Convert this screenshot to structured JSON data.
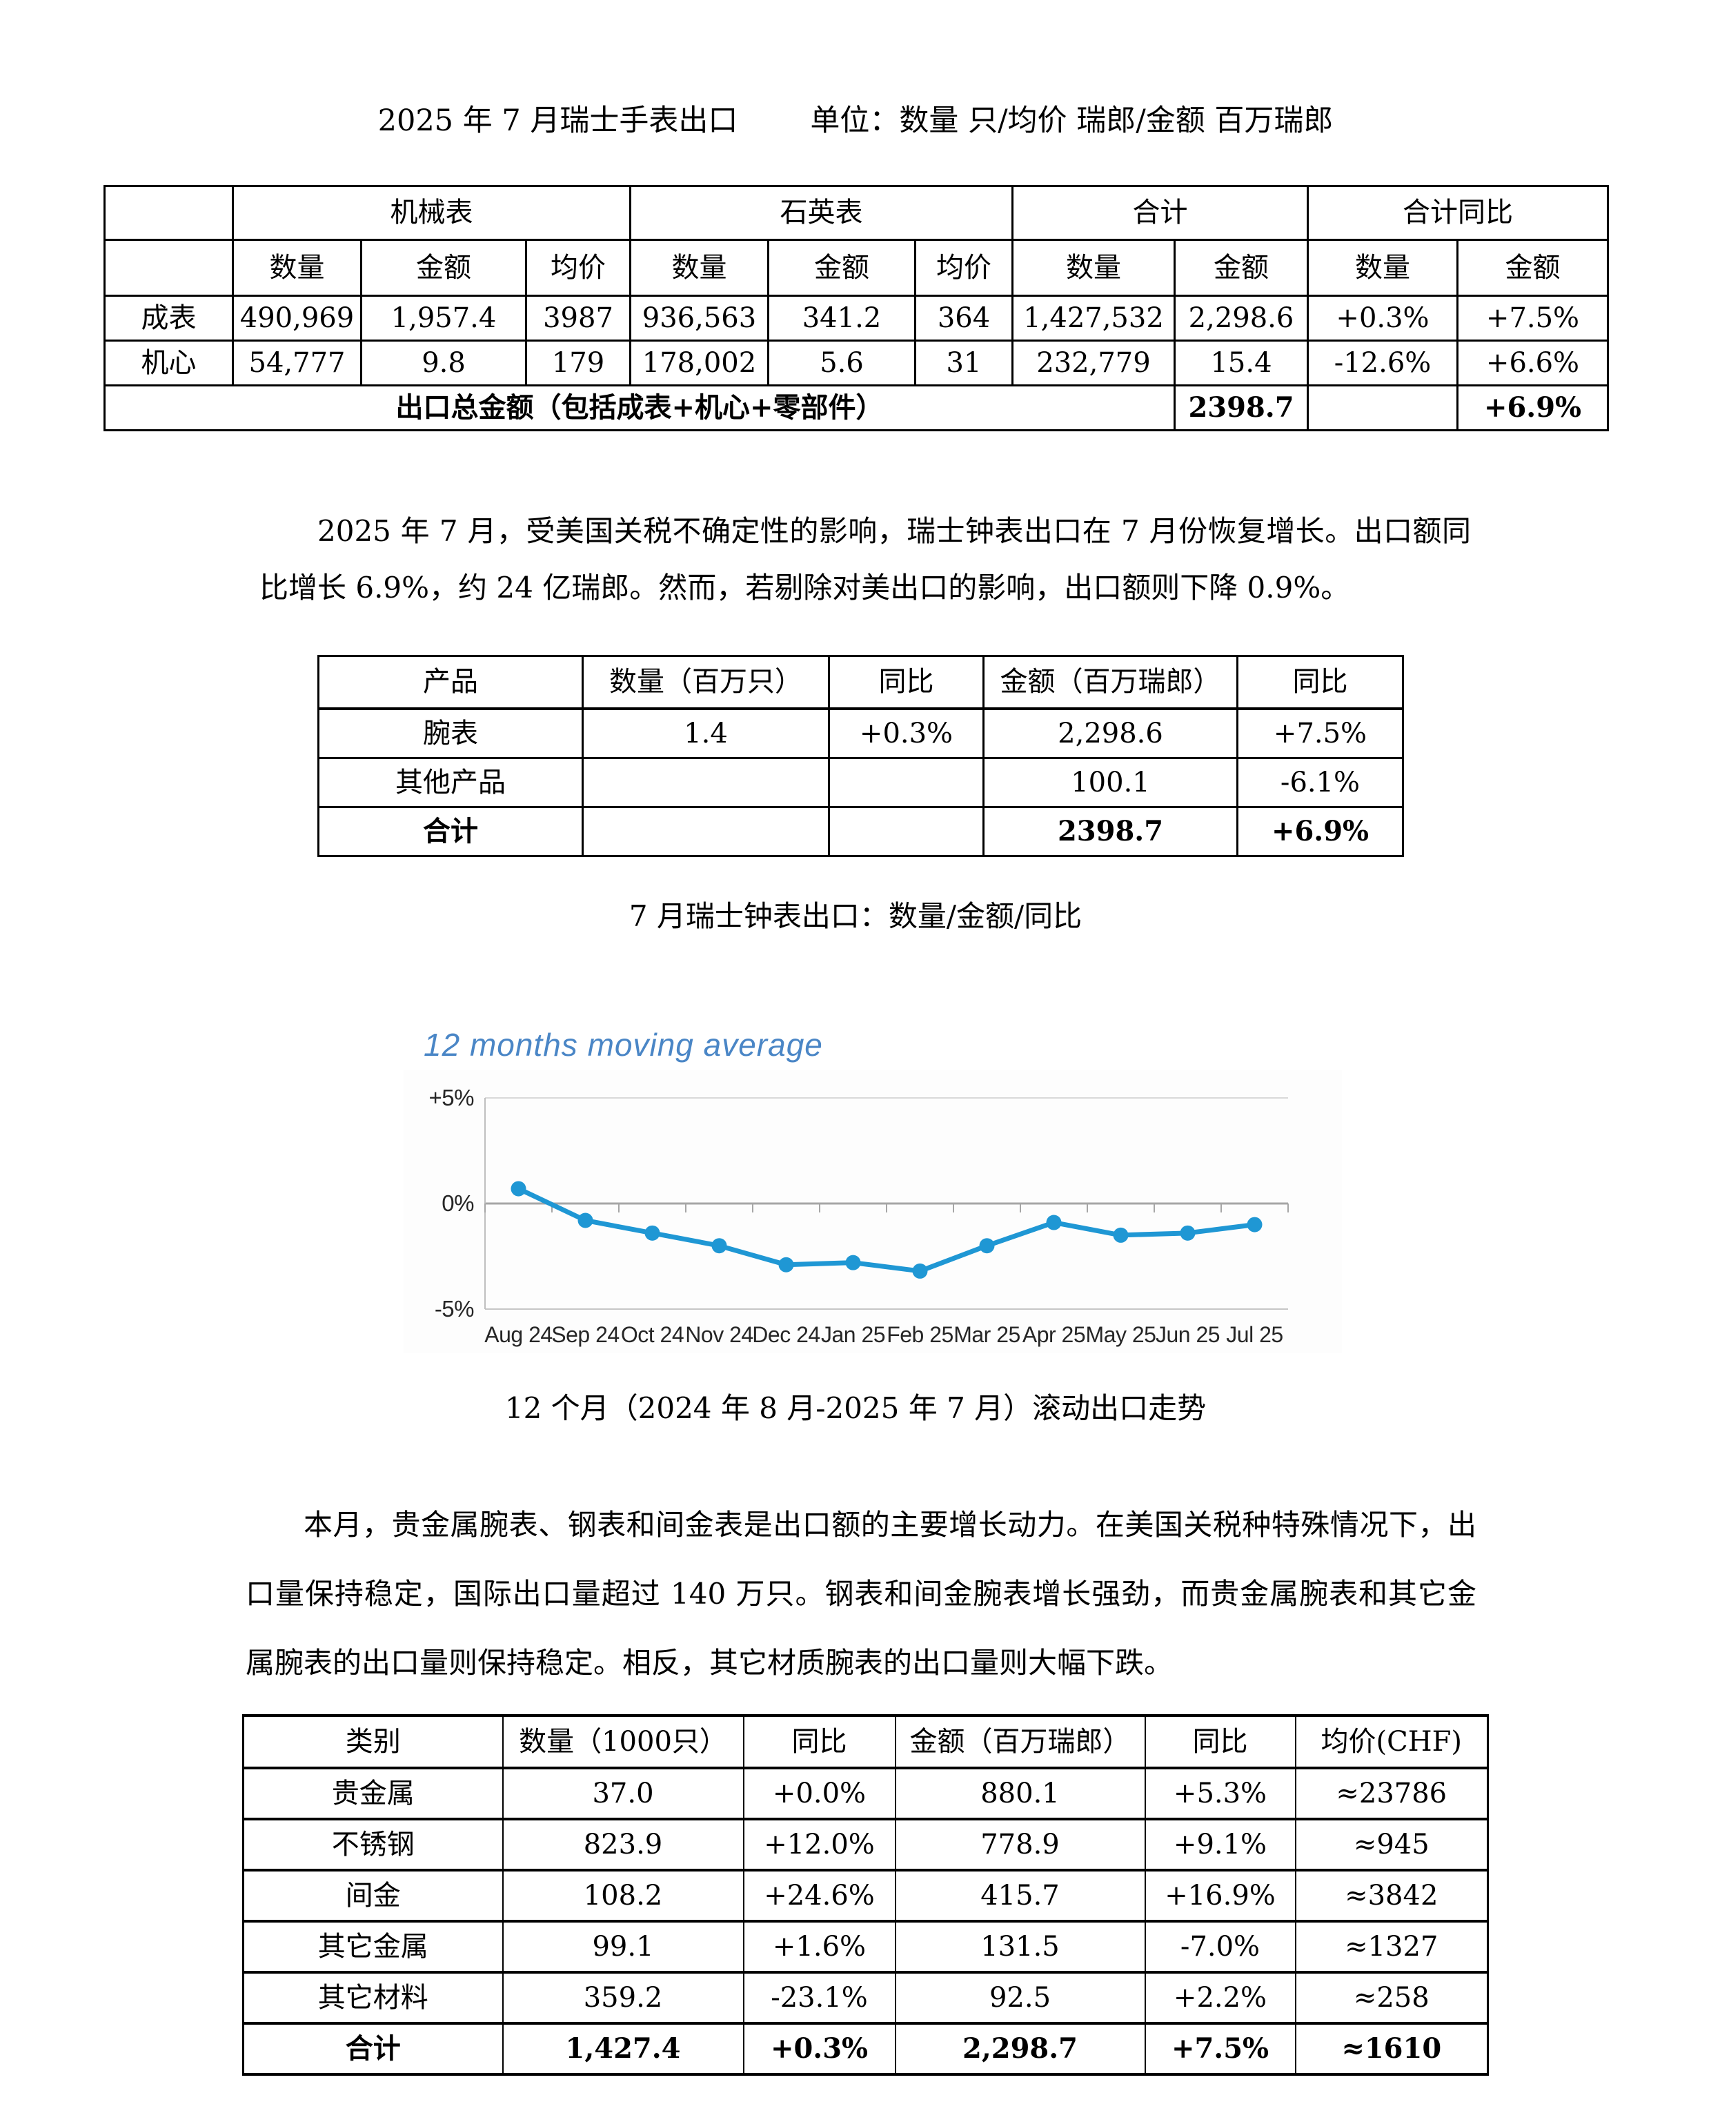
{
  "page": {
    "title_left": "2025 年 7 月瑞士手表出口",
    "title_right": "单位：数量 只/均价 瑞郎/金额 百万瑞郎"
  },
  "table1": {
    "group_headers": [
      "机械表",
      "石英表",
      "合计",
      "合计同比"
    ],
    "sub_headers": [
      "数量",
      "金额",
      "均价",
      "数量",
      "金额",
      "均价",
      "数量",
      "金额",
      "数量",
      "金额"
    ],
    "rows": [
      [
        "成表",
        "490,969",
        "1,957.4",
        "3987",
        "936,563",
        "341.2",
        "364",
        "1,427,532",
        "2,298.6",
        "+0.3%",
        "+7.5%"
      ],
      [
        "机心",
        "54,777",
        "9.8",
        "179",
        "178,002",
        "5.6",
        "31",
        "232,779",
        "15.4",
        "-12.6%",
        "+6.6%"
      ]
    ],
    "total_row": {
      "label": "出口总金额（包括成表+机心+零部件）",
      "amount": "2398.7",
      "qty_yoy": "",
      "amount_yoy": "+6.9%"
    }
  },
  "paragraph1": "2025 年 7 月，受美国关税不确定性的影响，瑞士钟表出口在 7 月份恢复增长。出口额同比增长 6.9%，约 24 亿瑞郎。然而，若剔除对美出口的影响，出口额则下降 0.9%。",
  "table2": {
    "headers": [
      "产品",
      "数量（百万只）",
      "同比",
      "金额（百万瑞郎）",
      "同比"
    ],
    "rows": [
      [
        "腕表",
        "1.4",
        "+0.3%",
        "2,298.6",
        "+7.5%"
      ],
      [
        "其他产品",
        "",
        "",
        "100.1",
        "-6.1%"
      ],
      [
        "合计",
        "",
        "",
        "2398.7",
        "+6.9%"
      ]
    ]
  },
  "caption1": "7 月瑞士钟表出口：数量/金额/同比",
  "chart_data": {
    "type": "line",
    "title": "12 months moving average",
    "title_color": "#4a86c6",
    "line_color": "#1f97d4",
    "marker": "circle",
    "x": [
      "Aug 24",
      "Sep 24",
      "Oct 24",
      "Nov 24",
      "Dec 24",
      "Jan 25",
      "Feb 25",
      "Mar 25",
      "Apr 25",
      "May 25",
      "Jun 25",
      "Jul 25"
    ],
    "values": [
      0.7,
      -0.8,
      -1.4,
      -2.0,
      -2.9,
      -2.8,
      -3.2,
      -2.0,
      -0.9,
      -1.5,
      -1.4,
      -1.0
    ],
    "ylim": [
      -5,
      5
    ],
    "yticks": [
      {
        "label": "+5%",
        "value": 5
      },
      {
        "label": "0%",
        "value": 0
      },
      {
        "label": "-5%",
        "value": -5
      }
    ],
    "xlabel": "",
    "ylabel": "",
    "legend": "none",
    "grid": "horizontal",
    "grid_color": "#d9d9d9",
    "zero_line_color": "#a6a6a6",
    "axis_color": "#bfbfbf",
    "tick_label_color": "#262626"
  },
  "caption2": "12 个月（2024 年 8 月-2025 年 7 月）滚动出口走势",
  "paragraph2": "本月，贵金属腕表、钢表和间金表是出口额的主要增长动力。在美国关税种特殊情况下，出口量保持稳定，国际出口量超过 140 万只。钢表和间金腕表增长强劲，而贵金属腕表和其它金属腕表的出口量则保持稳定。相反，其它材质腕表的出口量则大幅下跌。",
  "table3": {
    "headers": [
      "类别",
      "数量（1000只）",
      "同比",
      "金额（百万瑞郎）",
      "同比",
      "均价(CHF)"
    ],
    "rows": [
      [
        "贵金属",
        "37.0",
        "+0.0%",
        "880.1",
        "+5.3%",
        "≈23786"
      ],
      [
        "不锈钢",
        "823.9",
        "+12.0%",
        "778.9",
        "+9.1%",
        "≈945"
      ],
      [
        "间金",
        "108.2",
        "+24.6%",
        "415.7",
        "+16.9%",
        "≈3842"
      ],
      [
        "其它金属",
        "99.1",
        "+1.6%",
        "131.5",
        "-7.0%",
        "≈1327"
      ],
      [
        "其它材料",
        "359.2",
        "-23.1%",
        "92.5",
        "+2.2%",
        "≈258"
      ]
    ],
    "total_row": [
      "合计",
      "1,427.4",
      "+0.3%",
      "2,298.7",
      "+7.5%",
      "≈1610"
    ]
  }
}
